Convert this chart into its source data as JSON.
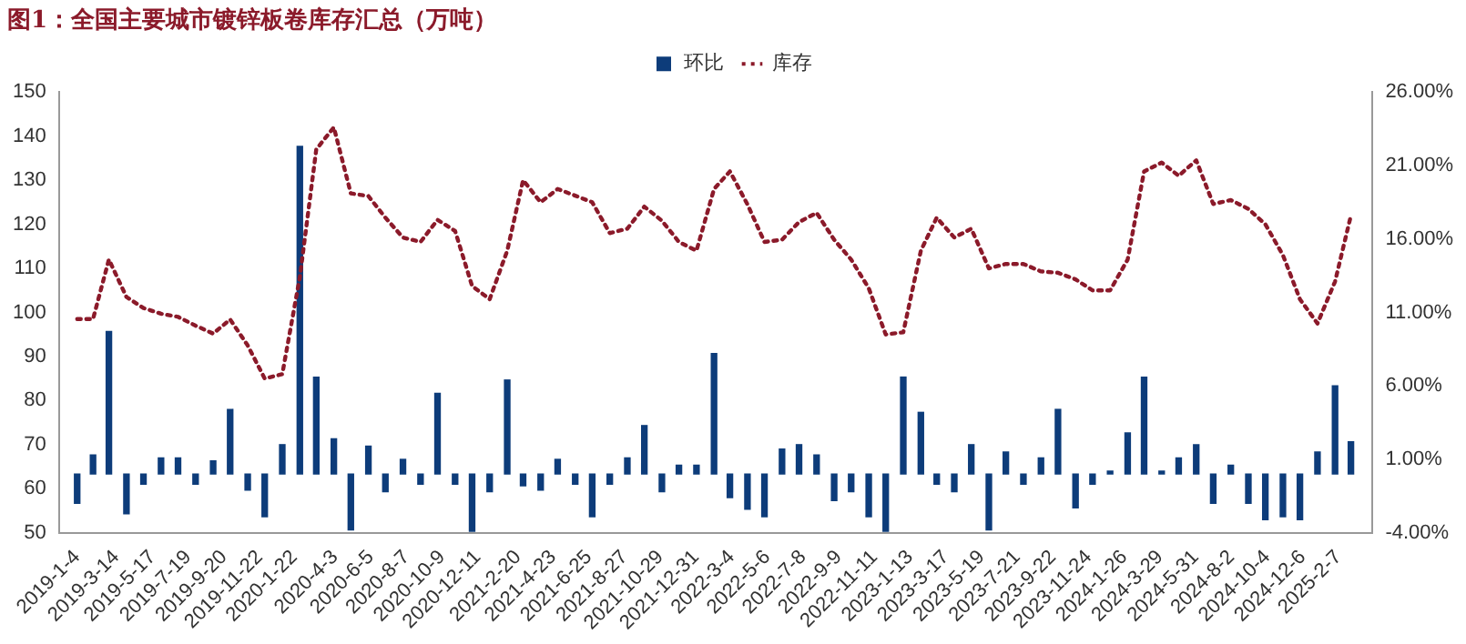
{
  "chart_data": {
    "type": "bar",
    "title": "图1：全国主要城市镀锌板卷库存汇总（万吨）",
    "legend": "top",
    "marker": "none",
    "line_style": "dotted",
    "x": [
      "2019-01-04",
      "2019-02-01",
      "2019-03-01",
      "2019-04-01",
      "2019-05-01",
      "2019-06-01",
      "2019-07-01",
      "2019-08-01",
      "2019-09-01",
      "2019-10-01",
      "2019-11-01",
      "2019-12-01",
      "2020-01-01",
      "2020-02-01",
      "2020-03-01",
      "2020-04-01",
      "2020-05-01",
      "2020-06-01",
      "2020-07-01",
      "2020-08-01",
      "2020-09-01",
      "2020-10-01",
      "2020-11-01",
      "2020-12-01",
      "2021-01-01",
      "2021-02-01",
      "2021-03-01",
      "2021-04-01",
      "2021-05-01",
      "2021-06-01",
      "2021-07-01",
      "2021-08-01",
      "2021-09-01",
      "2021-10-01",
      "2021-11-01",
      "2021-12-01",
      "2022-01-01",
      "2022-02-01",
      "2022-03-01",
      "2022-04-01",
      "2022-05-01",
      "2022-06-01",
      "2022-07-01",
      "2022-08-01",
      "2022-09-01",
      "2022-10-01",
      "2022-11-01",
      "2022-12-01",
      "2023-01-01",
      "2023-02-01",
      "2023-03-01",
      "2023-04-01",
      "2023-05-01",
      "2023-06-01",
      "2023-07-01",
      "2023-08-01",
      "2023-09-01",
      "2023-10-01",
      "2023-11-01",
      "2023-12-01",
      "2024-01-01",
      "2024-02-01",
      "2024-03-01",
      "2024-04-01",
      "2024-05-01",
      "2024-06-01",
      "2024-07-01",
      "2024-08-01",
      "2024-09-01",
      "2024-10-01",
      "2024-11-01",
      "2024-12-01",
      "2025-01-01",
      "2025-02-01",
      "2025-03-01"
    ],
    "xlim": [
      "2019-01-04",
      "2025-03-07"
    ],
    "xticks": [
      {
        "value": "2019-01-04",
        "label": "2019-1-4"
      },
      {
        "value": "2019-03-14",
        "label": "2019-3-14"
      },
      {
        "value": "2019-05-17",
        "label": "2019-5-17"
      },
      {
        "value": "2019-07-19",
        "label": "2019-7-19"
      },
      {
        "value": "2019-09-20",
        "label": "2019-9-20"
      },
      {
        "value": "2019-11-22",
        "label": "2019-11-22"
      },
      {
        "value": "2020-01-22",
        "label": "2020-1-22"
      },
      {
        "value": "2020-04-03",
        "label": "2020-4-3"
      },
      {
        "value": "2020-06-05",
        "label": "2020-6-5"
      },
      {
        "value": "2020-08-07",
        "label": "2020-8-7"
      },
      {
        "value": "2020-10-09",
        "label": "2020-10-9"
      },
      {
        "value": "2020-12-11",
        "label": "2020-12-11"
      },
      {
        "value": "2021-02-20",
        "label": "2021-2-20"
      },
      {
        "value": "2021-04-23",
        "label": "2021-4-23"
      },
      {
        "value": "2021-06-25",
        "label": "2021-6-25"
      },
      {
        "value": "2021-08-27",
        "label": "2021-8-27"
      },
      {
        "value": "2021-10-29",
        "label": "2021-10-29"
      },
      {
        "value": "2021-12-31",
        "label": "2021-12-31"
      },
      {
        "value": "2022-03-04",
        "label": "2022-3-4"
      },
      {
        "value": "2022-05-06",
        "label": "2022-5-6"
      },
      {
        "value": "2022-07-08",
        "label": "2022-7-8"
      },
      {
        "value": "2022-09-09",
        "label": "2022-9-9"
      },
      {
        "value": "2022-11-11",
        "label": "2022-11-11"
      },
      {
        "value": "2023-01-13",
        "label": "2023-1-13"
      },
      {
        "value": "2023-03-17",
        "label": "2023-3-17"
      },
      {
        "value": "2023-05-19",
        "label": "2023-5-19"
      },
      {
        "value": "2023-07-21",
        "label": "2023-7-21"
      },
      {
        "value": "2023-09-22",
        "label": "2023-9-22"
      },
      {
        "value": "2023-11-24",
        "label": "2023-11-24"
      },
      {
        "value": "2024-01-26",
        "label": "2024-1-26"
      },
      {
        "value": "2024-03-29",
        "label": "2024-3-29"
      },
      {
        "value": "2024-05-31",
        "label": "2024-5-31"
      },
      {
        "value": "2024-08-02",
        "label": "2024-8-2"
      },
      {
        "value": "2024-10-04",
        "label": "2024-10-4"
      },
      {
        "value": "2024-12-06",
        "label": "2024-12-6"
      },
      {
        "value": "2025-02-07",
        "label": "2025-2-7"
      }
    ],
    "ylim": [
      50,
      150
    ],
    "yticks": [
      50,
      60,
      70,
      80,
      90,
      100,
      110,
      120,
      130,
      140,
      150
    ],
    "y2lim": [
      -4,
      26
    ],
    "y2ticks": [
      {
        "value": -4,
        "label": "-4.00%"
      },
      {
        "value": 1,
        "label": "1.00%"
      },
      {
        "value": 6,
        "label": "6.00%"
      },
      {
        "value": 11,
        "label": "11.00%"
      },
      {
        "value": 16,
        "label": "16.00%"
      },
      {
        "value": 21,
        "label": "21.00%"
      },
      {
        "value": 26,
        "label": "26.00%"
      }
    ],
    "series": [
      {
        "name": "环比",
        "axis": "y2",
        "color": "#0d3c7a",
        "values": [
          -2.0,
          1.3,
          9.7,
          -2.7,
          -0.7,
          1.1,
          1.1,
          -0.7,
          0.9,
          4.4,
          -1.1,
          -2.9,
          2.0,
          22.3,
          6.6,
          2.4,
          -3.8,
          1.9,
          -1.2,
          1.0,
          -0.7,
          5.5,
          -0.7,
          -3.9,
          -1.2,
          6.4,
          -0.8,
          -1.1,
          1.0,
          -0.7,
          -2.9,
          -0.7,
          1.1,
          3.3,
          -1.2,
          0.6,
          0.6,
          8.2,
          -1.6,
          -2.4,
          -2.9,
          1.7,
          2.0,
          1.3,
          -1.8,
          -1.2,
          -2.9,
          -3.9,
          6.6,
          4.2,
          -0.7,
          -1.2,
          2.0,
          -3.8,
          1.5,
          -0.7,
          1.1,
          4.4,
          -2.3,
          -0.7,
          0.2,
          2.8,
          6.6,
          0.2,
          1.1,
          2.0,
          -2.0,
          0.6,
          -2.0,
          -3.1,
          -2.9,
          -3.1,
          1.5,
          6.0,
          2.2
        ]
      },
      {
        "name": "库存",
        "type": "line",
        "axis": "y",
        "color": "#8b1a2a",
        "values": [
          98.5,
          98.5,
          112,
          103.5,
          101,
          99.7,
          99,
          97,
          95.2,
          98.4,
          92.5,
          85,
          86,
          108,
          137,
          142,
          127,
          126.4,
          121.5,
          117,
          116,
          121,
          118.5,
          106,
          103,
          114,
          130,
          125,
          128,
          126.5,
          125,
          118,
          119,
          124,
          120.8,
          116,
          114,
          128,
          132,
          124.5,
          116,
          116.5,
          120.5,
          122.6,
          116.5,
          112,
          105.5,
          95,
          95.5,
          114,
          121.5,
          117,
          119,
          110,
          111,
          111,
          109.3,
          109,
          107.5,
          105,
          105,
          112,
          132,
          134,
          131,
          134.5,
          124.6,
          125.5,
          123.5,
          120,
          113,
          103,
          97.5,
          107,
          122
        ]
      }
    ]
  }
}
